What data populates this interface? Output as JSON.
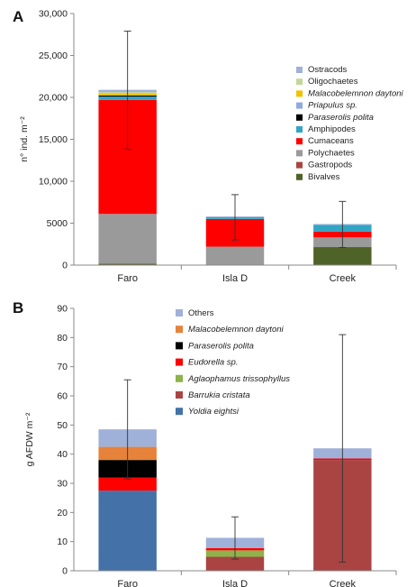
{
  "chart_data": [
    {
      "panel": "A",
      "type": "bar",
      "stacked": true,
      "ylabel": "n° ind. m⁻²",
      "ylim": [
        0,
        30000
      ],
      "yticks": [
        "0",
        "5000",
        "10,000",
        "15,000",
        "20,000",
        "25,000",
        "30,000"
      ],
      "ytick_values": [
        0,
        5000,
        10000,
        15000,
        20000,
        25000,
        30000
      ],
      "categories": [
        "Faro",
        "Isla D",
        "Creek"
      ],
      "legend_position": "top-right",
      "series": [
        {
          "name": "Bivalves",
          "color": "#4f6228",
          "italic": false,
          "values": [
            150,
            0,
            2100
          ]
        },
        {
          "name": "Gastropods",
          "color": "#a94442",
          "italic": false,
          "values": [
            50,
            20,
            50
          ]
        },
        {
          "name": "Polychaetes",
          "color": "#9a9a9a",
          "italic": false,
          "values": [
            5900,
            2180,
            1150
          ]
        },
        {
          "name": "Cumaceans",
          "color": "#ff0000",
          "italic": false,
          "values": [
            13600,
            3300,
            700
          ]
        },
        {
          "name": "Amphipodes",
          "color": "#31a5c4",
          "italic": false,
          "values": [
            400,
            200,
            800
          ]
        },
        {
          "name": "Paraserolis polita",
          "color": "#000000",
          "italic": true,
          "values": [
            120,
            0,
            0
          ]
        },
        {
          "name": "Priapulus sp.",
          "color": "#8faadc",
          "italic": true,
          "values": [
            0,
            0,
            0
          ]
        },
        {
          "name": "Malacobelemnon daytoni",
          "color": "#f2c200",
          "italic": true,
          "values": [
            300,
            0,
            0
          ]
        },
        {
          "name": "Oligochaetes",
          "color": "#c4d79b",
          "italic": false,
          "values": [
            100,
            0,
            0
          ]
        },
        {
          "name": "Ostracods",
          "color": "#9fb1d9",
          "italic": false,
          "values": [
            280,
            100,
            100
          ]
        }
      ],
      "error_bars": [
        {
          "category": "Faro",
          "low": 13800,
          "high": 27900
        },
        {
          "category": "Isla D",
          "low": 3000,
          "high": 8400
        },
        {
          "category": "Creek",
          "low": 2100,
          "high": 7600
        }
      ]
    },
    {
      "panel": "B",
      "type": "bar",
      "stacked": true,
      "ylabel": "g AFDW m⁻²",
      "ylim": [
        0,
        90
      ],
      "yticks": [
        "0",
        "10",
        "20",
        "30",
        "40",
        "50",
        "60",
        "70",
        "80",
        "90"
      ],
      "ytick_values": [
        0,
        10,
        20,
        30,
        40,
        50,
        60,
        70,
        80,
        90
      ],
      "categories": [
        "Faro",
        "Isla D",
        "Creek"
      ],
      "legend_position": "top-center",
      "series": [
        {
          "name": "Yoldia eightsi",
          "color": "#4472a8",
          "italic": true,
          "values": [
            27.5,
            0,
            0
          ]
        },
        {
          "name": "Barrukia cristata",
          "color": "#a94442",
          "italic": true,
          "values": [
            0,
            4.8,
            38.0
          ]
        },
        {
          "name": "Aglaophamus trissophyllus",
          "color": "#8db34a",
          "italic": true,
          "values": [
            0,
            2.2,
            0
          ]
        },
        {
          "name": "Eudorella sp.",
          "color": "#ff0000",
          "italic": true,
          "values": [
            4.5,
            0.8,
            0.5
          ]
        },
        {
          "name": "Paraserolis polita",
          "color": "#000000",
          "italic": true,
          "values": [
            6.0,
            0,
            0
          ]
        },
        {
          "name": "Malacobelemnon daytoni",
          "color": "#e6823a",
          "italic": true,
          "values": [
            4.5,
            0,
            0
          ]
        },
        {
          "name": "Others",
          "color": "#9fb1d9",
          "italic": false,
          "values": [
            6.0,
            3.5,
            3.5
          ]
        }
      ],
      "error_bars": [
        {
          "category": "Faro",
          "low": 31.5,
          "high": 65.5
        },
        {
          "category": "Isla D",
          "low": 4.0,
          "high": 18.5
        },
        {
          "category": "Creek",
          "low": 3.0,
          "high": 81.0
        }
      ]
    }
  ]
}
